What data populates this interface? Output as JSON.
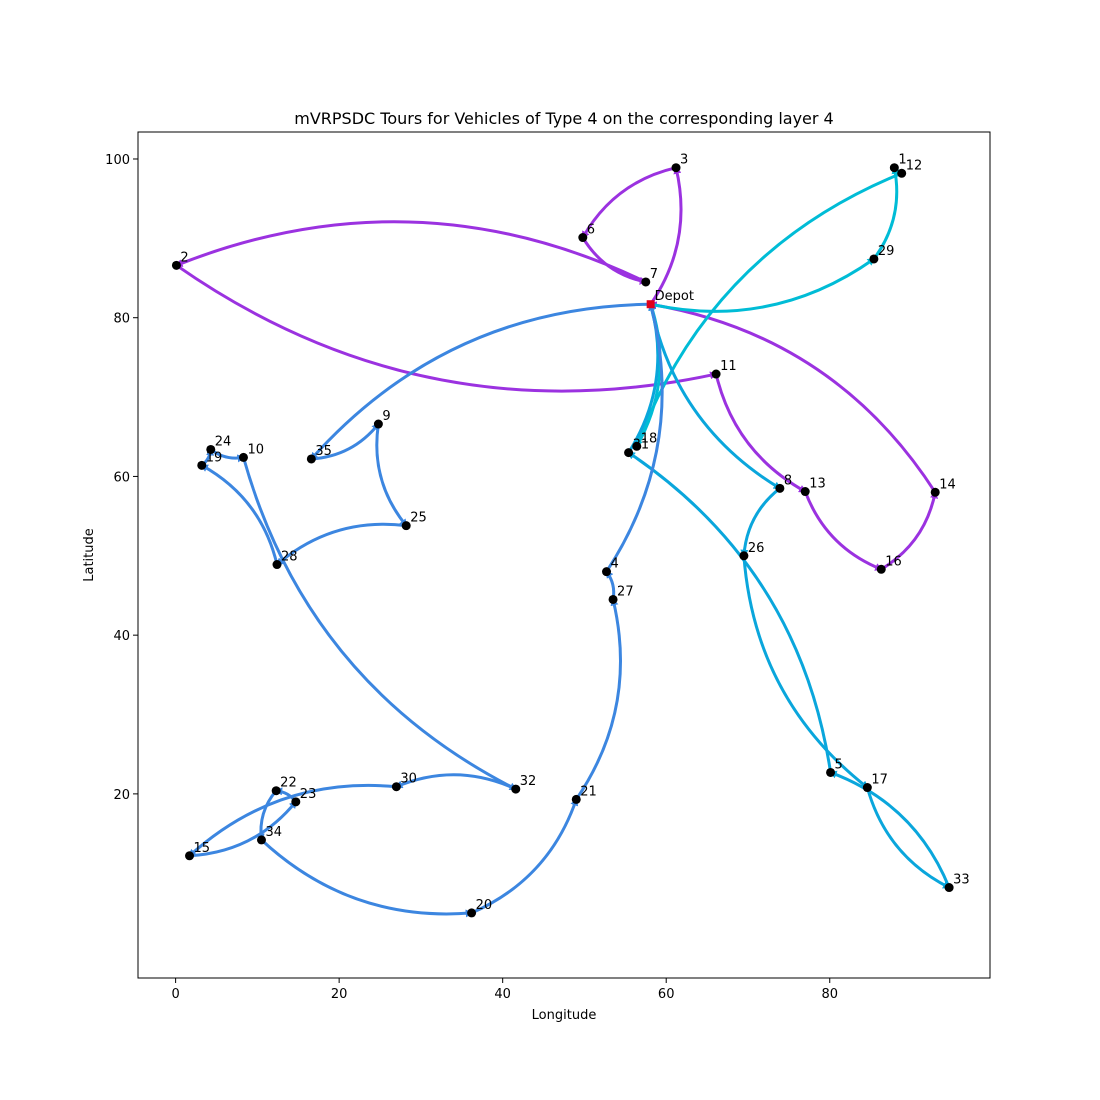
{
  "chart_data": {
    "type": "scatter",
    "title": "mVRPSDC Tours for Vehicles of Type 4 on the corresponding layer 4",
    "xlabel": "Longitude",
    "ylabel": "Latitude",
    "xlim": [
      -4.6,
      99.6
    ],
    "ylim": [
      -3.2,
      103.4
    ],
    "xticks": [
      0,
      20,
      40,
      60,
      80
    ],
    "yticks": [
      20,
      40,
      60,
      80,
      100
    ],
    "grid": false,
    "depot": {
      "label": "Depot",
      "x": 58.1,
      "y": 81.7
    },
    "nodes": [
      {
        "label": "1",
        "x": 87.9,
        "y": 98.9
      },
      {
        "label": "2",
        "x": 0.1,
        "y": 86.6
      },
      {
        "label": "3",
        "x": 61.2,
        "y": 98.9
      },
      {
        "label": "4",
        "x": 52.7,
        "y": 48.0
      },
      {
        "label": "5",
        "x": 80.1,
        "y": 22.7
      },
      {
        "label": "6",
        "x": 49.8,
        "y": 90.1
      },
      {
        "label": "7",
        "x": 57.5,
        "y": 84.5
      },
      {
        "label": "8",
        "x": 73.9,
        "y": 58.5
      },
      {
        "label": "9",
        "x": 24.8,
        "y": 66.6
      },
      {
        "label": "10",
        "x": 8.3,
        "y": 62.4
      },
      {
        "label": "11",
        "x": 66.1,
        "y": 72.9
      },
      {
        "label": "12",
        "x": 88.8,
        "y": 98.2
      },
      {
        "label": "13",
        "x": 77.0,
        "y": 58.1
      },
      {
        "label": "14",
        "x": 92.9,
        "y": 58.0
      },
      {
        "label": "15",
        "x": 1.7,
        "y": 12.2
      },
      {
        "label": "16",
        "x": 86.3,
        "y": 48.3
      },
      {
        "label": "17",
        "x": 84.6,
        "y": 20.8
      },
      {
        "label": "18",
        "x": 56.4,
        "y": 63.8
      },
      {
        "label": "19",
        "x": 3.2,
        "y": 61.4
      },
      {
        "label": "20",
        "x": 36.2,
        "y": 5.0
      },
      {
        "label": "21",
        "x": 49.0,
        "y": 19.3
      },
      {
        "label": "22",
        "x": 12.3,
        "y": 20.4
      },
      {
        "label": "23",
        "x": 14.7,
        "y": 19.0
      },
      {
        "label": "24",
        "x": 4.3,
        "y": 63.4
      },
      {
        "label": "25",
        "x": 28.2,
        "y": 53.8
      },
      {
        "label": "26",
        "x": 69.5,
        "y": 50.0
      },
      {
        "label": "27",
        "x": 53.5,
        "y": 44.5
      },
      {
        "label": "28",
        "x": 12.4,
        "y": 48.9
      },
      {
        "label": "29",
        "x": 85.4,
        "y": 87.4
      },
      {
        "label": "30",
        "x": 27.0,
        "y": 20.9
      },
      {
        "label": "31",
        "x": 55.4,
        "y": 63.0
      },
      {
        "label": "32",
        "x": 41.6,
        "y": 20.6
      },
      {
        "label": "33",
        "x": 94.6,
        "y": 8.2
      },
      {
        "label": "34",
        "x": 10.5,
        "y": 14.2
      },
      {
        "label": "35",
        "x": 16.6,
        "y": 62.2
      }
    ],
    "routes": [
      {
        "color": "#9b32e0",
        "stops": [
          "Depot",
          "3",
          "6",
          "7",
          "2",
          "11",
          "13",
          "16",
          "14",
          "Depot"
        ]
      },
      {
        "color": "#00bcd6",
        "stops": [
          "Depot",
          "29",
          "1",
          "12",
          "18",
          "Depot"
        ]
      },
      {
        "color": "#0aa6dc",
        "stops": [
          "Depot",
          "8",
          "26",
          "17",
          "33",
          "5",
          "31",
          "Depot"
        ]
      },
      {
        "color": "#3c86e0",
        "stops": [
          "Depot",
          "35",
          "9",
          "25",
          "28",
          "19",
          "24",
          "10",
          "32",
          "30",
          "15",
          "23",
          "22",
          "34",
          "20",
          "21",
          "27",
          "4",
          "Depot"
        ]
      }
    ]
  }
}
